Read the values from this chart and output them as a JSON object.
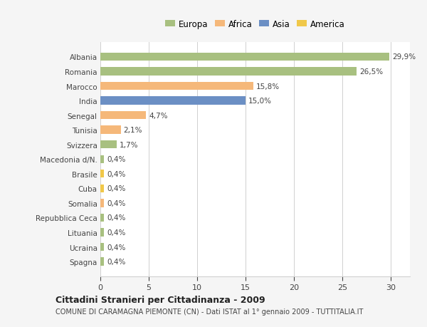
{
  "categories": [
    "Albania",
    "Romania",
    "Marocco",
    "India",
    "Senegal",
    "Tunisia",
    "Svizzera",
    "Macedonia d/N.",
    "Brasile",
    "Cuba",
    "Somalia",
    "Repubblica Ceca",
    "Lituania",
    "Ucraina",
    "Spagna"
  ],
  "values": [
    29.9,
    26.5,
    15.8,
    15.0,
    4.7,
    2.1,
    1.7,
    0.4,
    0.4,
    0.4,
    0.4,
    0.4,
    0.4,
    0.4,
    0.4
  ],
  "labels": [
    "29,9%",
    "26,5%",
    "15,8%",
    "15,0%",
    "4,7%",
    "2,1%",
    "1,7%",
    "0,4%",
    "0,4%",
    "0,4%",
    "0,4%",
    "0,4%",
    "0,4%",
    "0,4%",
    "0,4%"
  ],
  "colors": [
    "#a8c080",
    "#a8c080",
    "#f5b87a",
    "#6b8fc4",
    "#f5b87a",
    "#f5b87a",
    "#a8c080",
    "#a8c080",
    "#f0c84a",
    "#f0c84a",
    "#f5b87a",
    "#a8c080",
    "#a8c080",
    "#a8c080",
    "#a8c080"
  ],
  "legend_labels": [
    "Europa",
    "Africa",
    "Asia",
    "America"
  ],
  "legend_colors": [
    "#a8c080",
    "#f5b87a",
    "#6b8fc4",
    "#f0c84a"
  ],
  "title1": "Cittadini Stranieri per Cittadinanza - 2009",
  "title2": "COMUNE DI CARAMAGNA PIEMONTE (CN) - Dati ISTAT al 1° gennaio 2009 - TUTTITALIA.IT",
  "xlim": [
    0,
    32
  ],
  "xticks": [
    0,
    5,
    10,
    15,
    20,
    25,
    30
  ],
  "background_color": "#f5f5f5",
  "plot_background": "#ffffff"
}
